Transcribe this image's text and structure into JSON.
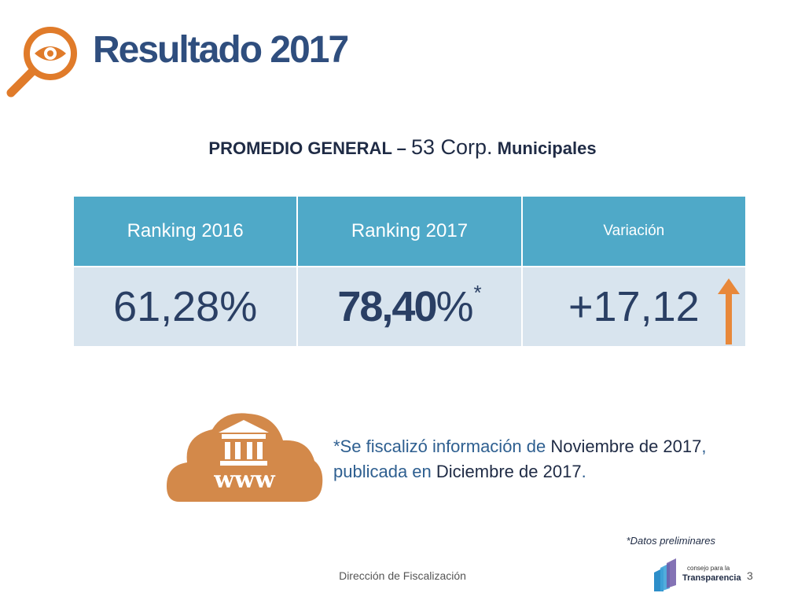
{
  "header": {
    "title": "Resultado 2017"
  },
  "subtitle": {
    "prefix": "PROMEDIO GENERAL – ",
    "number": "53 Corp.",
    "suffix": " Municipales"
  },
  "table": {
    "headers": [
      "Ranking 2016",
      "Ranking 2017",
      "Variación"
    ],
    "ranking_2016": "61,28%",
    "ranking_2017_num": "78,40",
    "ranking_2017_pct": "%",
    "ranking_2017_mark": "*",
    "variation": "+17,12"
  },
  "note": {
    "p1": "*Se fiscalizó información de ",
    "h1": "Noviembre de 2017",
    "p2": ", publicada en ",
    "h2": "Diciembre de 2017",
    "p3": "."
  },
  "cloud_text": "www",
  "prelim": "*Datos preliminares",
  "footer": {
    "text": "Dirección de Fiscalización",
    "page": "3"
  },
  "logo": {
    "small": "consejo para la",
    "big": "Transparencia"
  },
  "colors": {
    "header_bg": "#4fa9c8",
    "cell_bg": "#d8e4ee",
    "accent_orange": "#e07b2a",
    "cloud": "#d3894a",
    "title": "#2f4e7e"
  },
  "icons": [
    "eye-magnifier-icon",
    "up-arrow-icon",
    "cloud-institution-icon"
  ]
}
